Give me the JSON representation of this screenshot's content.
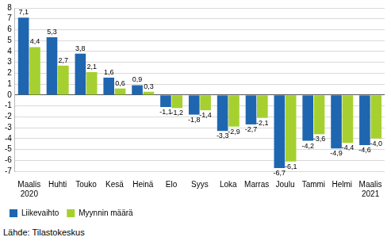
{
  "chart_data": {
    "type": "bar",
    "categories": [
      [
        "Maalis",
        "2020"
      ],
      "Huhti",
      "Touko",
      "Kesä",
      "Heinä",
      "Elo",
      "Syys",
      "Loka",
      "Marras",
      "Joulu",
      "Tammi",
      "Helmi",
      [
        "Maalis",
        "2021"
      ]
    ],
    "series": [
      {
        "name": "Liikevaihto",
        "color": "#1f66b0",
        "values": [
          7.1,
          5.3,
          3.8,
          1.6,
          0.9,
          -1.1,
          -1.8,
          -3.3,
          -2.7,
          -6.7,
          -4.2,
          -4.9,
          -4.6
        ],
        "value_labels": [
          "7,1",
          "5,3",
          "3,8",
          "1,6",
          "0,9",
          "-1,1",
          "-1,8",
          "-3,3",
          "-2,7",
          "-6,7",
          "-4,2",
          "-4,9",
          "-4,6"
        ]
      },
      {
        "name": "Myynnin määrä",
        "color": "#a6d02f",
        "values": [
          4.4,
          2.7,
          2.1,
          0.6,
          0.3,
          -1.2,
          -1.4,
          -2.9,
          -2.1,
          -6.1,
          -3.6,
          -4.4,
          -4.0
        ],
        "value_labels": [
          "4,4",
          "2,7",
          "2,1",
          "0,6",
          "0,3",
          "-1,2",
          "-1,4",
          "-2,9",
          "-2,1",
          "-6,1",
          "-3,6",
          "-4,4",
          "-4,0"
        ]
      }
    ],
    "ylim": [
      -7,
      8
    ],
    "yticks": [
      -7,
      -6,
      -5,
      -4,
      -3,
      -2,
      -1,
      0,
      1,
      2,
      3,
      4,
      5,
      6,
      7,
      8
    ],
    "grid": true,
    "legend": "bottom-left",
    "data_labels": true,
    "source": "Lähde: Tilastokeskus"
  }
}
